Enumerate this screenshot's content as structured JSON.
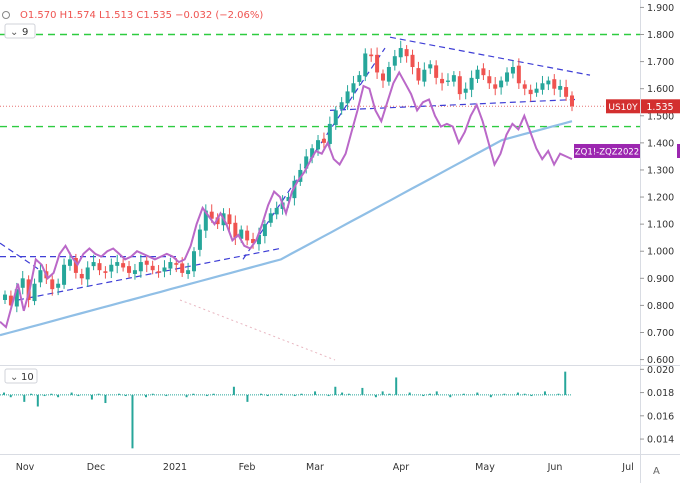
{
  "header": {
    "ohlc": "O1.570  H1.574  L1.513  C1.535  −0.032 (−2.06%)",
    "eye_icon": "eye-icon",
    "ma_indicator": "9",
    "volume_indicator": "10"
  },
  "colors": {
    "candle_up": "#26a69a",
    "candle_down": "#ef5350",
    "ratio_line": "#ba68c8",
    "ma_line": "#90bfe6",
    "trend_lines": "#3f3fd6",
    "support_lines": "#2ecc40",
    "us10y_label_bg": "#d32f2f",
    "zq_label_bg": "#9c27b0"
  },
  "chart_data": [
    {
      "type": "candlestick",
      "series": [
        {
          "name": "US10Y",
          "label": "US10Y",
          "last": "1.535"
        },
        {
          "name": "ZQ1!-ZQZ2022",
          "label": "ZQ1!-ZQZ2022"
        },
        {
          "name": "MA",
          "period": "9"
        }
      ],
      "x_tick_labels": [
        "Nov",
        "Dec",
        "2021",
        "Feb",
        "Mar",
        "Apr",
        "May",
        "Jun",
        "Jul"
      ],
      "y_tick_labels": [
        "1.900",
        "1.800",
        "1.700",
        "1.600",
        "1.500",
        "1.400",
        "1.300",
        "1.200",
        "1.100",
        "1.000",
        "0.900",
        "0.800",
        "0.700",
        "0.600"
      ],
      "ylim": [
        0.58,
        1.92
      ],
      "support_levels": [
        1.8,
        1.46
      ],
      "last_price_line": 1.535,
      "us10y_close": [
        0.84,
        0.8,
        0.86,
        0.9,
        0.82,
        0.88,
        0.93,
        0.9,
        0.86,
        0.88,
        0.95,
        0.97,
        0.92,
        0.9,
        0.94,
        0.96,
        0.93,
        0.92,
        0.95,
        0.96,
        0.94,
        0.92,
        0.93,
        0.96,
        0.95,
        0.93,
        0.92,
        0.94,
        0.96,
        0.95,
        0.92,
        0.93,
        1.0,
        1.08,
        1.15,
        1.12,
        1.1,
        1.14,
        1.1,
        1.05,
        1.08,
        1.04,
        1.03,
        1.06,
        1.1,
        1.14,
        1.16,
        1.18,
        1.2,
        1.26,
        1.3,
        1.35,
        1.38,
        1.41,
        1.4,
        1.47,
        1.52,
        1.55,
        1.59,
        1.62,
        1.65,
        1.73,
        1.72,
        1.66,
        1.63,
        1.68,
        1.72,
        1.75,
        1.72,
        1.68,
        1.63,
        1.67,
        1.69,
        1.64,
        1.62,
        1.63,
        1.65,
        1.58,
        1.6,
        1.64,
        1.67,
        1.65,
        1.62,
        1.6,
        1.63,
        1.66,
        1.68,
        1.62,
        1.6,
        1.58,
        1.6,
        1.62,
        1.63,
        1.6,
        1.61,
        1.57,
        1.535
      ],
      "ratio_line": [
        0.74,
        0.72,
        0.8,
        0.88,
        0.78,
        0.86,
        0.97,
        0.95,
        0.9,
        0.92,
        0.99,
        1.02,
        0.98,
        0.95,
        0.99,
        1.01,
        0.99,
        0.98,
        1.0,
        1.01,
        0.99,
        0.97,
        0.98,
        1.0,
        0.99,
        0.98,
        0.97,
        0.98,
        0.99,
        0.98,
        0.96,
        0.97,
        1.02,
        1.1,
        1.16,
        1.13,
        1.1,
        1.14,
        1.1,
        1.04,
        1.06,
        1.02,
        1.01,
        1.04,
        1.1,
        1.17,
        1.22,
        1.2,
        1.14,
        1.22,
        1.26,
        1.29,
        1.33,
        1.37,
        1.36,
        1.4,
        1.34,
        1.32,
        1.36,
        1.44,
        1.52,
        1.61,
        1.6,
        1.52,
        1.48,
        1.55,
        1.62,
        1.66,
        1.62,
        1.58,
        1.52,
        1.55,
        1.56,
        1.5,
        1.46,
        1.47,
        1.46,
        1.4,
        1.44,
        1.5,
        1.54,
        1.48,
        1.4,
        1.32,
        1.36,
        1.43,
        1.47,
        1.45,
        1.5,
        1.44,
        1.38,
        1.34,
        1.37,
        1.32,
        1.36,
        1.35,
        1.34
      ],
      "ma_line": [
        0.69,
        0.7,
        0.71,
        0.72,
        0.73,
        0.74,
        0.75,
        0.76,
        0.77,
        0.78,
        0.79,
        0.8,
        0.81,
        0.82,
        0.83,
        0.84,
        0.85,
        0.86,
        0.87,
        0.88,
        0.89,
        0.9,
        0.91,
        0.92,
        0.93,
        0.94,
        0.95,
        0.96,
        0.97,
        0.99,
        1.01,
        1.03,
        1.05,
        1.07,
        1.09,
        1.11,
        1.13,
        1.15,
        1.17,
        1.19,
        1.21,
        1.23,
        1.25,
        1.27,
        1.29,
        1.31,
        1.33,
        1.35,
        1.37,
        1.39,
        1.41,
        1.42,
        1.43,
        1.44,
        1.45,
        1.46,
        1.47,
        1.48
      ],
      "trend_lines": [
        {
          "from": [
            0,
            1.03
          ],
          "to": [
            40,
            0.93
          ]
        },
        {
          "from": [
            18,
            0.82
          ],
          "to": [
            280,
            1.01
          ]
        },
        {
          "from": [
            243,
            0.97
          ],
          "to": [
            385,
            1.75
          ]
        },
        {
          "from": [
            330,
            1.52
          ],
          "to": [
            575,
            1.56
          ]
        },
        {
          "from": [
            390,
            1.79
          ],
          "to": [
            590,
            1.65
          ]
        }
      ]
    },
    {
      "type": "bar",
      "name": "volume",
      "y_tick_labels": [
        "0.020",
        "0.018",
        "0.016",
        "0.014"
      ],
      "ylim": [
        0.0128,
        0.0202
      ],
      "baseline": 0.0178,
      "values": [
        0.018,
        0.0176,
        0.0178,
        0.0172,
        0.0179,
        0.0168,
        0.0177,
        0.0179,
        0.0176,
        0.0178,
        0.018,
        0.0177,
        0.0178,
        0.0174,
        0.0179,
        0.0171,
        0.0178,
        0.0179,
        0.0177,
        0.0132,
        0.0178,
        0.0176,
        0.0179,
        0.0178,
        0.0177,
        0.0178,
        0.0178,
        0.0176,
        0.0179,
        0.0178,
        0.0177,
        0.0179,
        0.0178,
        0.0178,
        0.0185,
        0.0178,
        0.0172,
        0.0178,
        0.0179,
        0.0177,
        0.0178,
        0.0179,
        0.0178,
        0.0177,
        0.0179,
        0.0178,
        0.0181,
        0.0178,
        0.0177,
        0.0185,
        0.018,
        0.0179,
        0.0178,
        0.0184,
        0.0178,
        0.0176,
        0.0181,
        0.0179,
        0.0193,
        0.0178,
        0.018,
        0.0178,
        0.0177,
        0.0179,
        0.0181,
        0.0178,
        0.0176,
        0.0178,
        0.0179,
        0.0178,
        0.018,
        0.0178,
        0.0176,
        0.0178,
        0.0179,
        0.0178,
        0.018,
        0.0179,
        0.0177,
        0.0178,
        0.0181,
        0.0178,
        0.0179,
        0.0198,
        0.0178
      ]
    }
  ]
}
